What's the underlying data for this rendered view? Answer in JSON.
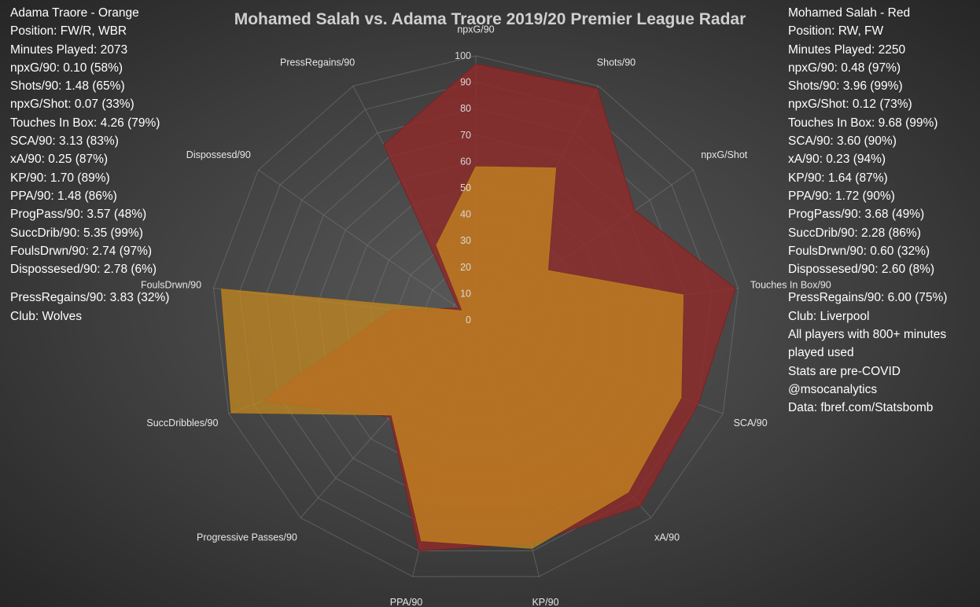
{
  "chart_data": {
    "type": "radar",
    "title": "Mohamed Salah vs. Adama Traore 2019/20 Premier League Radar",
    "axes": [
      "npxG/90",
      "Shots/90",
      "npxG/Shot",
      "Touches In Box/90",
      "SCA/90",
      "xA/90",
      "KP/90",
      "PPA/90",
      "Progressive Passes/90",
      "SuccDribbles/90",
      "FoulsDrwn/90",
      "Dispossesd/90",
      "PressRegains/90"
    ],
    "rlim": [
      0,
      100
    ],
    "ticks": [
      "0",
      "10",
      "20",
      "30",
      "40",
      "50",
      "60",
      "70",
      "80",
      "90",
      "100"
    ],
    "series": [
      {
        "name": "Mohamed Salah",
        "color": "#8b2e2e",
        "values": [
          97,
          99,
          73,
          99,
          90,
          94,
          87,
          90,
          49,
          86,
          32,
          8,
          75
        ]
      },
      {
        "name": "Adama Traore",
        "color": "#c9851c",
        "values": [
          58,
          65,
          33,
          79,
          83,
          87,
          89,
          86,
          48,
          99,
          97,
          6,
          32
        ]
      }
    ]
  },
  "left_panel": {
    "lines": [
      "Adama Traore - Orange",
      "Position: FW/R, WBR",
      "Minutes Played: 2073",
      "npxG/90: 0.10 (58%)",
      "Shots/90: 1.48 (65%)",
      "npxG/Shot: 0.07 (33%)",
      "Touches In Box: 4.26 (79%)",
      "SCA/90: 3.13 (83%)",
      "xA/90: 0.25 (87%)",
      "KP/90: 1.70 (89%)",
      "PPA/90: 1.48 (86%)",
      "ProgPass/90: 3.57 (48%)",
      "SuccDrib/90: 5.35 (99%)",
      "FoulsDrwn/90: 2.74 (97%)",
      "Dispossesed/90: 2.78 (6%)"
    ],
    "extra": [
      "PressRegains/90: 3.83 (32%)",
      "Club: Wolves"
    ]
  },
  "right_panel": {
    "lines": [
      "Mohamed Salah - Red",
      "Position: RW, FW",
      "Minutes Played: 2250",
      "npxG/90: 0.48 (97%)",
      "Shots/90: 3.96 (99%)",
      "npxG/Shot: 0.12 (73%)",
      "Touches In Box: 9.68 (99%)",
      "SCA/90: 3.60 (90%)",
      "xA/90: 0.23 (94%)",
      "KP/90: 1.64 (87%)",
      "PPA/90: 1.72 (90%)",
      "ProgPass/90: 3.68 (49%)",
      "SuccDrib/90: 2.28 (86%)",
      "FoulsDrwn/90: 0.60 (32%)",
      "Dispossesed/90: 2.60 (8%)"
    ],
    "extra": [
      "PressRegains/90: 6.00 (75%)",
      "Club: Liverpool",
      "All players with 800+ minutes",
      "played used",
      "Stats are pre-COVID",
      "@msocanalytics",
      "Data: fbref.com/Statsbomb"
    ]
  }
}
